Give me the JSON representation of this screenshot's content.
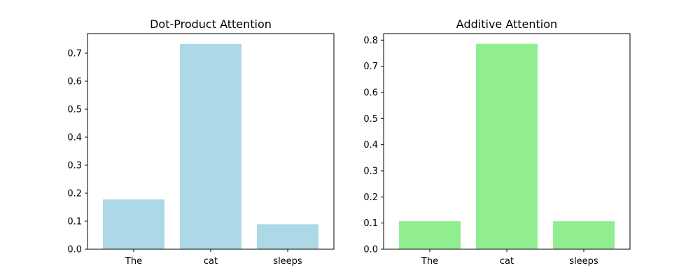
{
  "chart_data": [
    {
      "type": "bar",
      "title": "Dot-Product Attention",
      "categories": [
        "The",
        "cat",
        "sleeps"
      ],
      "values": [
        0.178,
        0.733,
        0.089
      ],
      "ylim": [
        0,
        0.77
      ],
      "yticks": [
        0.0,
        0.1,
        0.2,
        0.3,
        0.4,
        0.5,
        0.6,
        0.7
      ],
      "ytick_labels": [
        "0.0",
        "0.1",
        "0.2",
        "0.3",
        "0.4",
        "0.5",
        "0.6",
        "0.7"
      ],
      "xlabel": "",
      "ylabel": "",
      "color": "#add8e6",
      "grid": false
    },
    {
      "type": "bar",
      "title": "Additive Attention",
      "categories": [
        "The",
        "cat",
        "sleeps"
      ],
      "values": [
        0.107,
        0.786,
        0.107
      ],
      "ylim": [
        0,
        0.825
      ],
      "yticks": [
        0.0,
        0.1,
        0.2,
        0.3,
        0.4,
        0.5,
        0.6,
        0.7,
        0.8
      ],
      "ytick_labels": [
        "0.0",
        "0.1",
        "0.2",
        "0.3",
        "0.4",
        "0.5",
        "0.6",
        "0.7",
        "0.8"
      ],
      "xlabel": "",
      "ylabel": "",
      "color": "#90ee90",
      "grid": false
    }
  ]
}
